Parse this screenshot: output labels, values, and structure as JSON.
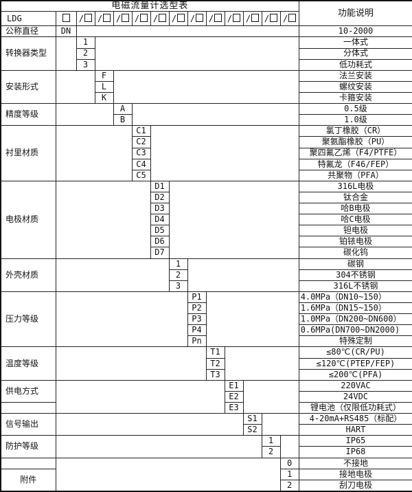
{
  "title": "电磁流量计选型表",
  "function_header": "功能说明",
  "colors": {
    "border": "#141414",
    "background": "#ffffff",
    "text": "#111111"
  },
  "model_code_row": {
    "prefix": "LDG",
    "base_slot": "□",
    "slots": [
      "/□",
      "/□",
      "/□",
      "/□",
      "/□",
      "/□",
      "/□",
      "/□",
      "/□",
      "/□",
      "/□",
      "/□"
    ]
  },
  "categories": [
    {
      "label": "公称直径",
      "code_col": 0,
      "rows": [
        {
          "code": "DN",
          "desc": "10-2000"
        }
      ]
    },
    {
      "label": "转换器类型",
      "code_col": 1,
      "rows": [
        {
          "code": "1",
          "desc": "一体式"
        },
        {
          "code": "2",
          "desc": "分体式"
        },
        {
          "code": "3",
          "desc": "低功耗式"
        }
      ]
    },
    {
      "label": "安装形式",
      "code_col": 2,
      "rows": [
        {
          "code": "F",
          "desc": "法兰安装"
        },
        {
          "code": "L",
          "desc": "螺纹安装"
        },
        {
          "code": "K",
          "desc": "卡箍安装"
        }
      ]
    },
    {
      "label": "精度等级",
      "code_col": 3,
      "rows": [
        {
          "code": "A",
          "desc": "0.5级"
        },
        {
          "code": "B",
          "desc": "1.0级"
        }
      ]
    },
    {
      "label": "衬里材质",
      "code_col": 4,
      "rows": [
        {
          "code": "C1",
          "desc": "氯丁橡胶（CR）"
        },
        {
          "code": "C2",
          "desc": "聚氨酯橡胶（PU）"
        },
        {
          "code": "C3",
          "desc": "聚四氟乙烯（F4/PTFE）"
        },
        {
          "code": "C4",
          "desc": "特氟龙（F46/FEP）"
        },
        {
          "code": "C5",
          "desc": "共聚物（PFA）"
        }
      ]
    },
    {
      "label": "电极材质",
      "code_col": 5,
      "rows": [
        {
          "code": "D1",
          "desc": "316L电极"
        },
        {
          "code": "D2",
          "desc": "钛合金"
        },
        {
          "code": "D3",
          "desc": "哈B电极"
        },
        {
          "code": "D4",
          "desc": "哈C电极"
        },
        {
          "code": "D5",
          "desc": "钽电极"
        },
        {
          "code": "D6",
          "desc": "铂铱电极"
        },
        {
          "code": "D7",
          "desc": "碳化钨"
        }
      ]
    },
    {
      "label": "外壳材质",
      "code_col": 6,
      "rows": [
        {
          "code": "1",
          "desc": "碳钢"
        },
        {
          "code": "2",
          "desc": "304不锈钢"
        },
        {
          "code": "3",
          "desc": "316L不锈钢"
        }
      ]
    },
    {
      "label": "压力等级",
      "code_col": 7,
      "rows": [
        {
          "code": "P1",
          "desc": "4.0MPa（DN10~150）",
          "align": "left"
        },
        {
          "code": "P2",
          "desc": "1.6MPa（DN15~150）",
          "align": "left"
        },
        {
          "code": "P3",
          "desc": "1.0MPa（DN200~DN600）",
          "align": "left"
        },
        {
          "code": "P4",
          "desc": "0.6MPa(DN700~DN2000)",
          "align": "left"
        },
        {
          "code": "Pn",
          "desc": "特殊定制"
        }
      ]
    },
    {
      "label": "温度等级",
      "code_col": 8,
      "rows": [
        {
          "code": "T1",
          "desc": "≤80℃(CR/PU)"
        },
        {
          "code": "T2",
          "desc": "≤120℃(PTEP/FEP)"
        },
        {
          "code": "T3",
          "desc": "≤200℃(PFA)"
        }
      ]
    },
    {
      "label": "供电方式",
      "code_col": 9,
      "label_row_start": 0,
      "label_row_span": 2,
      "rows": [
        {
          "code": "E1",
          "desc": "220VAC"
        },
        {
          "code": "E2",
          "desc": "24VDC"
        },
        {
          "code": "E3",
          "desc": "锂电池（仅限低功耗式）"
        }
      ]
    },
    {
      "label": "信号输出",
      "code_col": 10,
      "rows": [
        {
          "code": "S1",
          "desc": "4-20mA+RS485（标配）"
        },
        {
          "code": "S2",
          "desc": "HART"
        }
      ]
    },
    {
      "label": "防护等级",
      "code_col": 11,
      "rows": [
        {
          "code": "1",
          "desc": "IP65"
        },
        {
          "code": "2",
          "desc": "IP68"
        }
      ]
    },
    {
      "label": "附件",
      "code_col": 12,
      "label_row_start": 1,
      "label_row_span": 2,
      "rows": [
        {
          "code": "0",
          "desc": "不接地"
        },
        {
          "code": "1",
          "desc": "接地电极"
        },
        {
          "code": "2",
          "desc": "刮刀电极"
        }
      ]
    }
  ]
}
